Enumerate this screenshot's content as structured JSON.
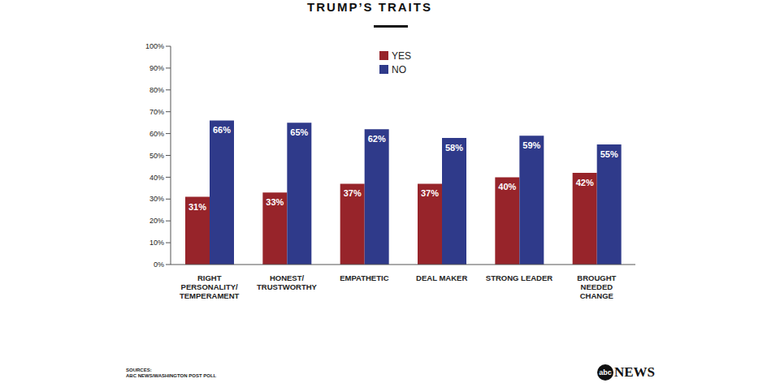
{
  "chart_data": {
    "type": "bar",
    "title": "TRUMP’S TRAITS",
    "categories": [
      "RIGHT\nPERSONALITY/\nTEMPERAMENT",
      "HONEST/\nTRUSTWORTHY",
      "EMPATHETIC",
      "DEAL MAKER",
      "STRONG LEADER",
      "BROUGHT\nNEEDED\nCHANGE"
    ],
    "series": [
      {
        "name": "YES",
        "color": "#97242a",
        "values": [
          31,
          33,
          37,
          37,
          40,
          42
        ],
        "value_labels": [
          "31%",
          "33%",
          "37%",
          "37%",
          "40%",
          "42%"
        ]
      },
      {
        "name": "NO",
        "color": "#2f3a8a",
        "values": [
          66,
          65,
          62,
          58,
          59,
          55
        ],
        "value_labels": [
          "66%",
          "65%",
          "62%",
          "58%",
          "59%",
          "55%"
        ]
      }
    ],
    "ylim": [
      0,
      100
    ],
    "yticks": [
      {
        "value": 0,
        "label": "0%"
      },
      {
        "value": 10,
        "label": "10%"
      },
      {
        "value": 20,
        "label": "20%"
      },
      {
        "value": 30,
        "label": "30%"
      },
      {
        "value": 40,
        "label": "40%"
      },
      {
        "value": 50,
        "label": "50%"
      },
      {
        "value": 60,
        "label": "60%"
      },
      {
        "value": 70,
        "label": "70%"
      },
      {
        "value": 80,
        "label": "80%"
      },
      {
        "value": 90,
        "label": "90%"
      },
      {
        "value": 100,
        "label": "100%"
      }
    ],
    "grid": false,
    "legend": "top",
    "data_labels": true,
    "source": [
      "SOURCES:",
      "ABC NEWS/WASHINGTON POST POLL"
    ],
    "logo": {
      "circle": "abc",
      "text": "NEWS"
    }
  }
}
